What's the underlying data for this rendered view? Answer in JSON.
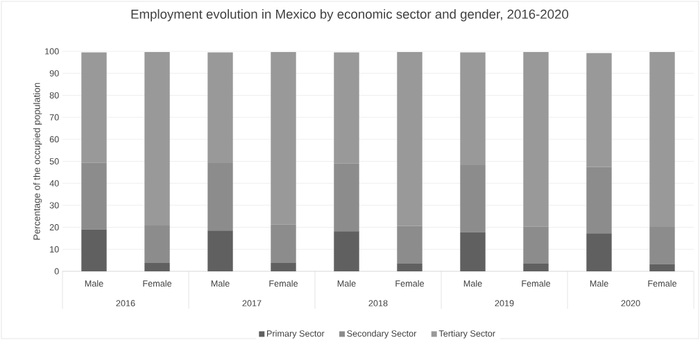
{
  "chart_data": {
    "type": "bar",
    "title": "Employment evolution in Mexico by economic sector and gender, 2016-2020",
    "ylabel": "Percentage of the occupied  population",
    "categories": [
      "Male",
      "Female",
      "Male",
      "Female",
      "Male",
      "Female",
      "Male",
      "Female",
      "Male",
      "Female"
    ],
    "annotations": [
      "2016",
      "2017",
      "2018",
      "2019",
      "2020"
    ],
    "stacked": true,
    "series": [
      {
        "name": "Primary Sector",
        "color": "#606060",
        "values": [
          19.0,
          3.8,
          18.5,
          3.8,
          18.2,
          3.5,
          17.8,
          3.5,
          17.3,
          3.3
        ]
      },
      {
        "name": "Secondary Sector",
        "color": "#8c8c8c",
        "values": [
          30.3,
          17.0,
          30.7,
          17.4,
          30.8,
          17.2,
          30.5,
          16.8,
          30.2,
          16.9
        ]
      },
      {
        "name": "Tertiary Sector",
        "color": "#999999",
        "values": [
          50.2,
          78.9,
          50.3,
          78.5,
          50.5,
          79.0,
          51.2,
          79.4,
          51.7,
          79.5
        ]
      }
    ],
    "ylim": [
      0,
      100
    ],
    "yticks": [
      0,
      10,
      20,
      30,
      40,
      50,
      60,
      70,
      80,
      90,
      100
    ],
    "grid": "y",
    "legend": "bottom"
  }
}
